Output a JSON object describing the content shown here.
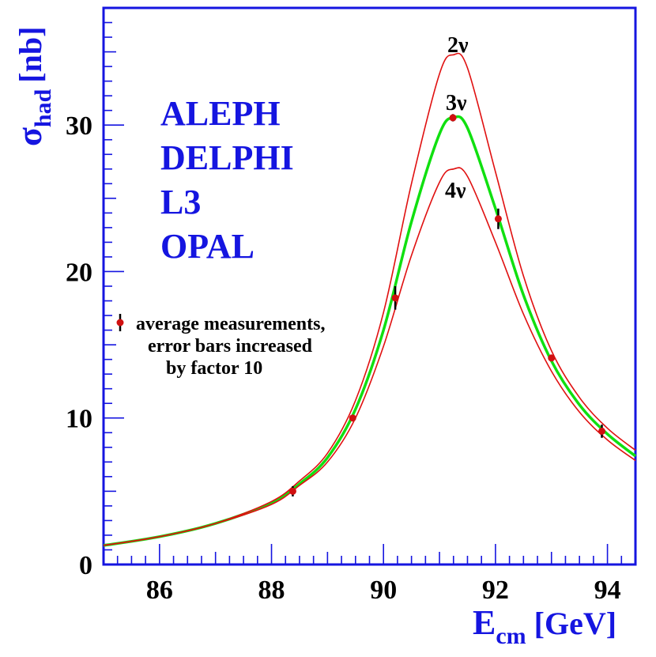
{
  "chart_data": {
    "type": "line",
    "xlabel": {
      "main": "E",
      "sub": "cm",
      "unit": "[GeV]"
    },
    "ylabel": {
      "main": "σ",
      "sub": "had",
      "unit": "[nb]"
    },
    "xlim": [
      85,
      94.5
    ],
    "ylim": [
      0,
      38
    ],
    "x_ticks": [
      86,
      88,
      90,
      92,
      94
    ],
    "y_ticks": [
      0,
      10,
      20,
      30
    ],
    "experiments": [
      "ALEPH",
      "DELPHI",
      "L3",
      "OPAL"
    ],
    "series": [
      {
        "name": "2ν",
        "color": "#e01010",
        "x": [
          85,
          86,
          87,
          88,
          88.5,
          89,
          89.5,
          90,
          90.5,
          91,
          91.25,
          91.5,
          92,
          92.5,
          93,
          93.5,
          94,
          94.5
        ],
        "y": [
          1.3,
          1.9,
          2.8,
          4.3,
          5.7,
          7.6,
          11.2,
          17.2,
          26.0,
          33.5,
          34.8,
          33.9,
          26.8,
          19.7,
          14.6,
          11.4,
          9.3,
          7.8
        ]
      },
      {
        "name": "3ν",
        "color": "#10e010",
        "x": [
          85,
          86,
          87,
          88,
          88.5,
          89,
          89.5,
          90,
          90.5,
          91,
          91.25,
          91.5,
          92,
          92.5,
          93,
          93.5,
          94,
          94.5
        ],
        "y": [
          1.3,
          1.9,
          2.8,
          4.2,
          5.5,
          7.3,
          10.6,
          16.0,
          23.4,
          29.4,
          30.5,
          29.8,
          24.3,
          18.4,
          13.9,
          10.9,
          8.9,
          7.4
        ]
      },
      {
        "name": "4ν",
        "color": "#e01010",
        "x": [
          85,
          86,
          87,
          88,
          88.5,
          89,
          89.5,
          90,
          90.5,
          91,
          91.25,
          91.5,
          92,
          92.5,
          93,
          93.5,
          94,
          94.5
        ],
        "y": [
          1.3,
          1.9,
          2.8,
          4.1,
          5.4,
          7.0,
          10.0,
          14.9,
          21.1,
          26.1,
          27.0,
          26.5,
          22.0,
          17.1,
          13.2,
          10.4,
          8.5,
          7.1
        ]
      }
    ],
    "measurements": {
      "label": [
        "average measurements,",
        "error bars increased",
        "by factor 10"
      ],
      "color": "#d01010",
      "x": [
        88.38,
        89.45,
        90.21,
        91.24,
        92.05,
        93.0,
        93.9
      ],
      "y": [
        5.0,
        10.0,
        18.2,
        30.5,
        23.6,
        14.1,
        9.1
      ],
      "err": [
        0.35,
        0.2,
        0.8,
        0.25,
        0.7,
        0.2,
        0.45
      ]
    }
  }
}
